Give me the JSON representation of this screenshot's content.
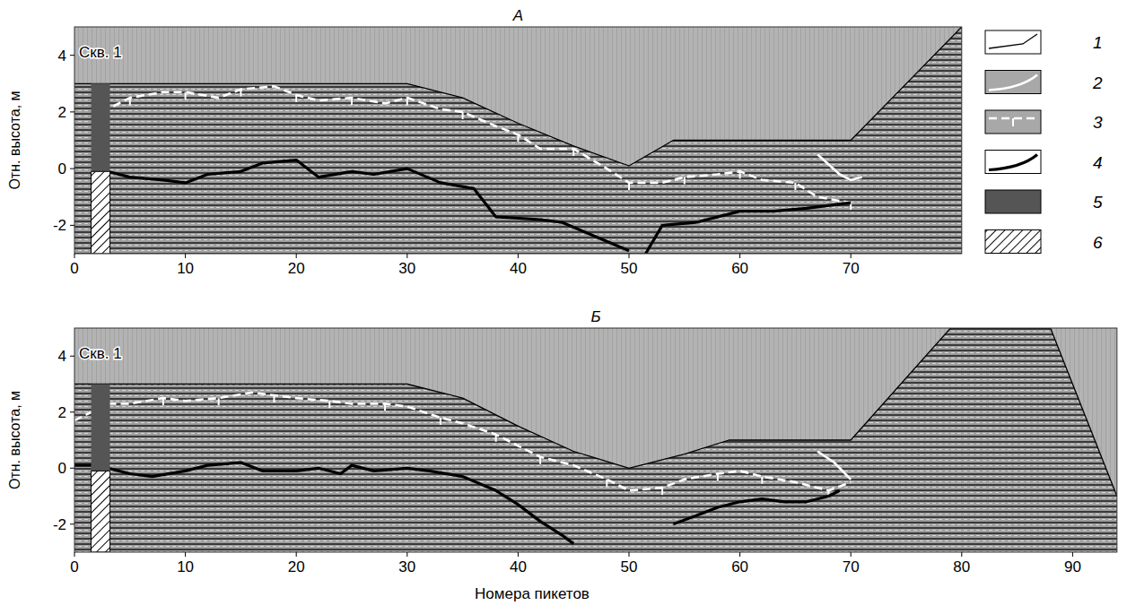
{
  "chart_data": [
    {
      "type": "line",
      "title": "А",
      "ylabel": "Отн. высота, м",
      "xlim": [
        0,
        80
      ],
      "ylim": [
        -3,
        5
      ],
      "xticks": [
        0,
        10,
        20,
        30,
        40,
        50,
        60,
        70
      ],
      "yticks": [
        -2,
        0,
        2,
        4
      ],
      "legend": "right",
      "annotations": [
        {
          "text": "Скв. 1",
          "x": 0,
          "y": 4.1
        }
      ],
      "series": [
        {
          "name": "1",
          "type": "line",
          "color": "#000000",
          "line_style": "thin",
          "x": [
            0,
            30,
            35,
            40,
            45,
            50,
            54,
            70,
            80
          ],
          "values": [
            3,
            3,
            2.5,
            1.6,
            0.8,
            0.1,
            1,
            1,
            5
          ]
        },
        {
          "name": "2",
          "type": "line",
          "color": "#ffffff",
          "line_style": "solid",
          "x": [
            67,
            69,
            70,
            71
          ],
          "values": [
            0.5,
            -0.2,
            -0.4,
            -0.3
          ]
        },
        {
          "name": "3",
          "type": "line",
          "color": "#ffffff",
          "line_style": "dashed",
          "marker": "tick",
          "x": [
            3.5,
            5,
            8,
            10,
            13,
            15,
            18,
            20,
            22,
            25,
            28,
            30,
            33,
            35,
            38,
            40,
            42,
            45,
            48,
            50,
            53,
            55,
            58,
            60,
            62,
            65,
            67,
            70
          ],
          "values": [
            2.2,
            2.5,
            2.7,
            2.7,
            2.5,
            2.8,
            2.9,
            2.6,
            2.4,
            2.5,
            2.3,
            2.5,
            2.1,
            2,
            1.5,
            1.2,
            0.7,
            0.7,
            0,
            -0.5,
            -0.5,
            -0.3,
            -0.2,
            -0.1,
            -0.4,
            -0.5,
            -1,
            -1.2
          ]
        },
        {
          "name": "4",
          "type": "line",
          "color": "#000000",
          "line_style": "thick",
          "x": [
            3,
            5,
            8,
            10,
            12,
            15,
            17,
            20,
            22,
            25,
            27,
            30,
            33,
            36,
            38,
            42,
            44,
            47,
            50,
            51,
            51.5,
            53,
            56,
            60,
            63,
            66,
            70
          ],
          "values": [
            -0.1,
            -0.3,
            -0.4,
            -0.5,
            -0.2,
            -0.1,
            0.2,
            0.3,
            -0.3,
            -0.1,
            -0.2,
            0,
            -0.5,
            -0.7,
            -1.7,
            -1.8,
            -1.9,
            -2.4,
            -2.9,
            null,
            -3,
            -2,
            -1.9,
            -1.5,
            -1.5,
            -1.4,
            -1.2
          ]
        },
        {
          "name": "5",
          "type": "polygon",
          "color": "#555555",
          "x": [
            1.5,
            3.2,
            3.2,
            1.5
          ],
          "values": [
            3,
            3,
            -0.1,
            -0.1
          ]
        },
        {
          "name": "6",
          "type": "polygon",
          "color": "#000000",
          "line_style": "hatch",
          "x": [
            1.5,
            3.2,
            3.2,
            1.5
          ],
          "values": [
            -0.1,
            -0.1,
            -3,
            -3
          ]
        }
      ]
    },
    {
      "type": "line",
      "title": "Б",
      "ylabel": "Отн. высота, м",
      "xlabel": "Номера пикетов",
      "xlim": [
        0,
        94
      ],
      "ylim": [
        -3,
        5
      ],
      "xticks": [
        0,
        10,
        20,
        30,
        40,
        50,
        60,
        70,
        80,
        90
      ],
      "yticks": [
        -2,
        0,
        2,
        4
      ],
      "annotations": [
        {
          "text": "Скв. 1",
          "x": 0,
          "y": 4.1
        }
      ],
      "series": [
        {
          "type": "line",
          "color": "#000000",
          "line_style": "thin",
          "x": [
            0,
            30,
            35,
            40,
            45,
            50,
            55,
            59,
            70,
            79,
            88,
            94
          ],
          "values": [
            3,
            3,
            2.5,
            1.5,
            0.6,
            0,
            0.5,
            1,
            1,
            5,
            5,
            -1
          ]
        },
        {
          "type": "line",
          "color": "#ffffff",
          "line_style": "solid",
          "x": [
            67,
            68.5,
            70
          ],
          "values": [
            0.6,
            0.2,
            -0.4
          ]
        },
        {
          "type": "line",
          "color": "#ffffff",
          "line_style": "dashed",
          "marker": "tick",
          "x": [
            0,
            3,
            5,
            8,
            10,
            13,
            16,
            18,
            20,
            23,
            25,
            28,
            30,
            33,
            35,
            38,
            40,
            42,
            45,
            48,
            50,
            53,
            55,
            58,
            60,
            62,
            65,
            68,
            70
          ],
          "values": [
            1.7,
            2.3,
            2.3,
            2.5,
            2.4,
            2.5,
            2.7,
            2.6,
            2.5,
            2.4,
            2.3,
            2.3,
            2.2,
            1.8,
            1.6,
            1.2,
            0.8,
            0.4,
            0.1,
            -0.4,
            -0.8,
            -0.7,
            -0.4,
            -0.2,
            -0.1,
            -0.3,
            -0.5,
            -0.8,
            -0.5
          ]
        },
        {
          "type": "line",
          "color": "#000000",
          "line_style": "thick",
          "x": [
            0,
            2,
            5,
            7,
            10,
            12,
            15,
            17,
            20,
            22,
            24,
            25,
            27,
            30,
            32,
            35,
            38,
            40,
            42,
            44,
            45,
            50,
            54,
            56,
            58,
            60,
            62,
            64,
            66,
            68,
            69
          ],
          "values": [
            0.1,
            0.1,
            -0.2,
            -0.3,
            -0.1,
            0.1,
            0.2,
            -0.1,
            -0.1,
            0,
            -0.2,
            0.1,
            -0.1,
            0,
            -0.1,
            -0.3,
            -0.8,
            -1.3,
            -1.9,
            -2.4,
            -2.7,
            null,
            -2,
            -1.7,
            -1.4,
            -1.2,
            -1.1,
            -1.2,
            -1.2,
            -1,
            -0.8
          ]
        },
        {
          "type": "polygon",
          "color": "#555555",
          "x": [
            1.5,
            3.2,
            3.2,
            1.5
          ],
          "values": [
            3,
            3,
            -0.1,
            -0.1
          ]
        },
        {
          "type": "polygon",
          "color": "#000000",
          "line_style": "hatch",
          "x": [
            1.5,
            3.2,
            3.2,
            1.5
          ],
          "values": [
            -0.1,
            -0.1,
            -3,
            -3
          ]
        }
      ]
    }
  ]
}
